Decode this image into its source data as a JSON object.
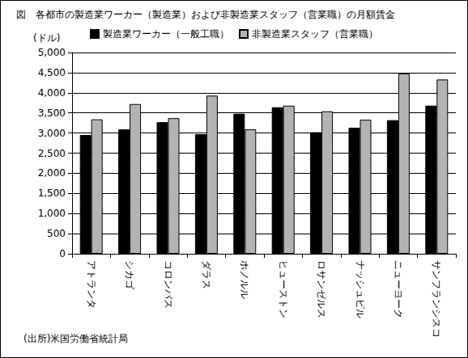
{
  "chart_data": {
    "type": "bar",
    "title": "図　各都市の製造業ワーカー（製造業）および非製造業スタッフ（営業職）の月額賃金",
    "ylabel": "(ドル)",
    "annotations": [
      "(出所)米国労働省統計局"
    ],
    "categories": [
      "アトランタ",
      "シカゴ",
      "コロンバス",
      "ダラス",
      "ホノルル",
      "ヒューストン",
      "ロサンゼルス",
      "ナッシュビル",
      "ニューヨーク",
      "サンフランシスコ"
    ],
    "series": [
      {
        "name": "製造業ワーカー（一般工職）",
        "color": "#000000",
        "values": [
          2950,
          3090,
          3270,
          2970,
          3480,
          3640,
          3020,
          3130,
          3320,
          3680
        ]
      },
      {
        "name": "非製造業スタッフ（営業職）",
        "color": "#b3b3b3",
        "values": [
          3340,
          3720,
          3370,
          3930,
          3090,
          3680,
          3540,
          3330,
          4480,
          4330
        ]
      }
    ],
    "ylim": [
      0,
      5000
    ],
    "yticks": [
      0,
      500,
      {
        "value": 1000,
        "label": "1,000"
      },
      {
        "value": 1500,
        "label": "1,500"
      },
      {
        "value": 2000,
        "label": "2,000"
      },
      {
        "value": 2500,
        "label": "2,500"
      },
      {
        "value": 3000,
        "label": "3,000"
      },
      {
        "value": 3500,
        "label": "3,500"
      },
      {
        "value": 4000,
        "label": "4,000"
      },
      {
        "value": 4500,
        "label": "4,500"
      },
      {
        "value": 5000,
        "label": "5,000"
      }
    ],
    "grid": true,
    "legend": "top"
  }
}
